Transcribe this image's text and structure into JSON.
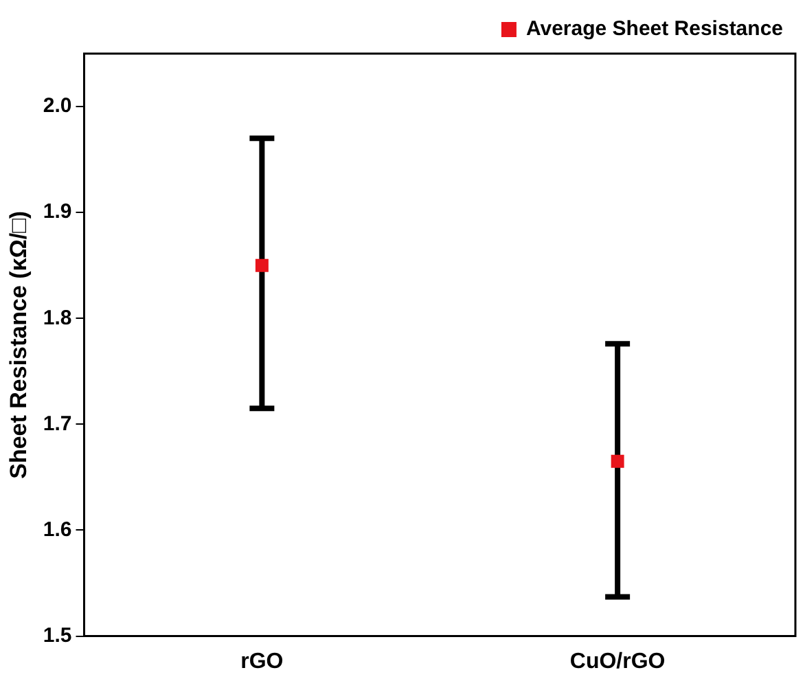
{
  "chart_data": {
    "type": "scatter",
    "ylabel": "Sheet Resistance (κΩ/□)",
    "categories": [
      "rGO",
      "CuO/rGO"
    ],
    "series": [
      {
        "name": "Average Sheet Resistance",
        "color": "#e8141b",
        "values": [
          1.85,
          1.665
        ],
        "errors": [
          [
            1.715,
            1.97
          ],
          [
            1.537,
            1.776
          ]
        ]
      }
    ],
    "ylim": [
      1.5,
      2.05
    ],
    "yticks": [
      {
        "value": 1.5,
        "label": "1.5"
      },
      {
        "value": 1.6,
        "label": "1.6"
      },
      {
        "value": 1.7,
        "label": "1.7"
      },
      {
        "value": 1.8,
        "label": "1.8"
      },
      {
        "value": 1.9,
        "label": "1.9"
      },
      {
        "value": 2.0,
        "label": "2.0"
      }
    ],
    "grid": false,
    "legend": "top right",
    "marker": "square"
  }
}
